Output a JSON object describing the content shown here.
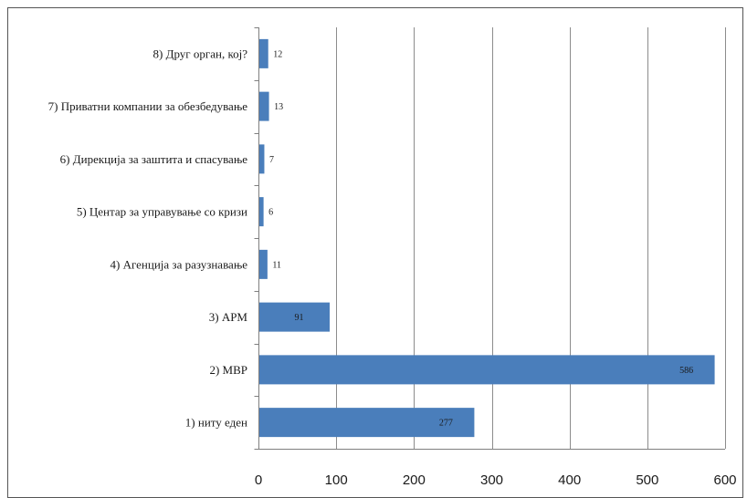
{
  "chart_data": {
    "type": "bar",
    "orientation": "horizontal",
    "categories": [
      "8) Друг орган, кој?",
      "7) Приватни компании за обезбедување",
      "6) Дирекција за заштита и спасување",
      "5) Центар за управување со кризи",
      "4) Агенција за разузнавање",
      "3) АРМ",
      "2) МВР",
      "1) ниту еден"
    ],
    "values": [
      12,
      13,
      7,
      6,
      11,
      91,
      586,
      277
    ],
    "data_labels": [
      "12",
      "13",
      "7",
      "6",
      "11",
      "91",
      "586",
      "277"
    ],
    "xlim": [
      0,
      600
    ],
    "x_ticks": [
      0,
      100,
      200,
      300,
      400,
      500,
      600
    ],
    "x_tick_labels": [
      "0",
      "100",
      "200",
      "300",
      "400",
      "500",
      "600"
    ],
    "title": "",
    "xlabel": "",
    "ylabel": "",
    "grid": "vertical",
    "legend": "none",
    "bar_color": "#4a7ebb"
  }
}
